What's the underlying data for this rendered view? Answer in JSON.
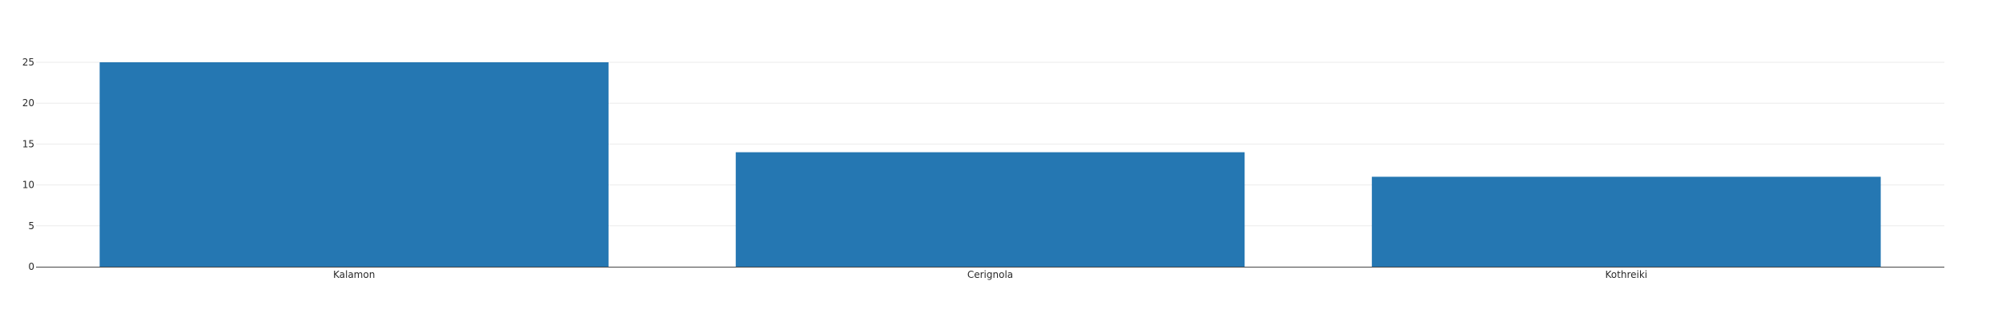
{
  "chart_data": {
    "type": "bar",
    "title": "",
    "xlabel": "",
    "ylabel": "",
    "categories": [
      "Kalamon",
      "Cerignola",
      "Kothreiki"
    ],
    "values": [
      25,
      14,
      11
    ],
    "ylim": [
      0,
      25
    ],
    "yticks": [
      0,
      5,
      10,
      15,
      20,
      25
    ],
    "grid": true,
    "legend": "none",
    "colors": {
      "bar": "#2577b2",
      "grid": "#ebebeb",
      "axis": "#444444",
      "text": "#2a2a2a"
    }
  }
}
